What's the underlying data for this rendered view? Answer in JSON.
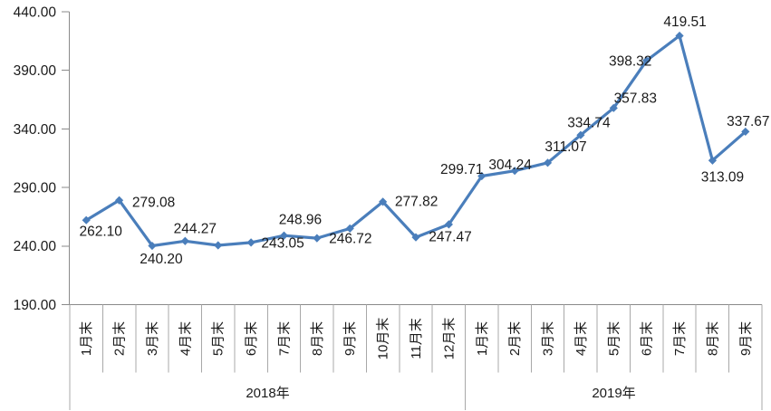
{
  "chart_data": {
    "type": "line",
    "title": "",
    "legend": "none",
    "grid": false,
    "background": "#ffffff",
    "colors": {
      "series": "#4a7ebb",
      "axis_line": "#8a8a8a",
      "cell_line": "#a8a8a8",
      "text": "#1a1a1a"
    },
    "y_axis": {
      "min": 190,
      "max": 440,
      "step": 50,
      "tick_labels_top_to_bottom": [
        "440.00",
        "390.00",
        "340.00",
        "290.00",
        "240.00",
        "190.00"
      ]
    },
    "x_axis": {
      "groups": [
        {
          "label": "2018年",
          "months": [
            "1月末",
            "2月末",
            "3月末",
            "4月末",
            "5月末",
            "6月末",
            "7月末",
            "8月末",
            "9月末",
            "10月末",
            "11月末",
            "12月末"
          ]
        },
        {
          "label": "2019年",
          "months": [
            "1月末",
            "2月末",
            "3月末",
            "4月末",
            "5月末",
            "6月末",
            "7月末",
            "8月末",
            "9月末"
          ]
        }
      ]
    },
    "series": [
      {
        "name": "",
        "color": "#4a7ebb",
        "points": [
          {
            "group": "2018年",
            "month": "1月末",
            "value": 262.1,
            "label": "262.10",
            "label_offset": [
              16,
              12
            ]
          },
          {
            "group": "2018年",
            "month": "2月末",
            "value": 279.08,
            "label": "279.08",
            "label_offset": [
              38,
              2
            ]
          },
          {
            "group": "2018年",
            "month": "3月末",
            "value": 240.2,
            "label": "240.20",
            "label_offset": [
              10,
              14
            ]
          },
          {
            "group": "2018年",
            "month": "4月末",
            "value": 244.27,
            "label": "244.27",
            "label_offset": [
              11,
              -14
            ]
          },
          {
            "group": "2018年",
            "month": "5月末",
            "value": 240.6,
            "label": null,
            "estimated": true
          },
          {
            "group": "2018年",
            "month": "6月末",
            "value": 243.05,
            "label": "243.05",
            "label_offset": [
              35,
              0
            ]
          },
          {
            "group": "2018年",
            "month": "7月末",
            "value": 248.96,
            "label": "248.96",
            "label_offset": [
              18,
              -18
            ]
          },
          {
            "group": "2018年",
            "month": "8月末",
            "value": 246.72,
            "label": "246.72",
            "label_offset": [
              37,
              0
            ]
          },
          {
            "group": "2018年",
            "month": "9月末",
            "value": 255.0,
            "label": null,
            "estimated": true
          },
          {
            "group": "2018年",
            "month": "10月末",
            "value": 277.82,
            "label": "277.82",
            "label_offset": [
              37,
              -1
            ]
          },
          {
            "group": "2018年",
            "month": "11月末",
            "value": 247.47,
            "label": "247.47",
            "label_offset": [
              38,
              -1
            ]
          },
          {
            "group": "2018年",
            "month": "12月末",
            "value": 258.5,
            "label": null,
            "estimated": true
          },
          {
            "group": "2019年",
            "month": "1月末",
            "value": 299.71,
            "label": "299.71",
            "label_offset": [
              -22,
              -8
            ]
          },
          {
            "group": "2019年",
            "month": "2月末",
            "value": 304.24,
            "label": "304.24",
            "label_offset": [
              -5,
              -7
            ]
          },
          {
            "group": "2019年",
            "month": "3月末",
            "value": 311.07,
            "label": "311.07",
            "label_offset": [
              20,
              -18
            ]
          },
          {
            "group": "2019年",
            "month": "4月末",
            "value": 334.74,
            "label": "334.74",
            "label_offset": [
              9,
              -14
            ]
          },
          {
            "group": "2019年",
            "month": "5月末",
            "value": 357.83,
            "label": "357.83",
            "label_offset": [
              24,
              -11
            ]
          },
          {
            "group": "2019年",
            "month": "6月末",
            "value": 398.32,
            "label": "398.32",
            "label_offset": [
              -18,
              0
            ]
          },
          {
            "group": "2019年",
            "month": "7月末",
            "value": 419.51,
            "label": "419.51",
            "label_offset": [
              6,
              -16
            ]
          },
          {
            "group": "2019年",
            "month": "8月末",
            "value": 313.09,
            "label": "313.09",
            "label_offset": [
              11,
              18
            ]
          },
          {
            "group": "2019年",
            "month": "9月末",
            "value": 337.67,
            "label": "337.67",
            "label_offset": [
              3,
              -12
            ]
          }
        ]
      }
    ]
  }
}
